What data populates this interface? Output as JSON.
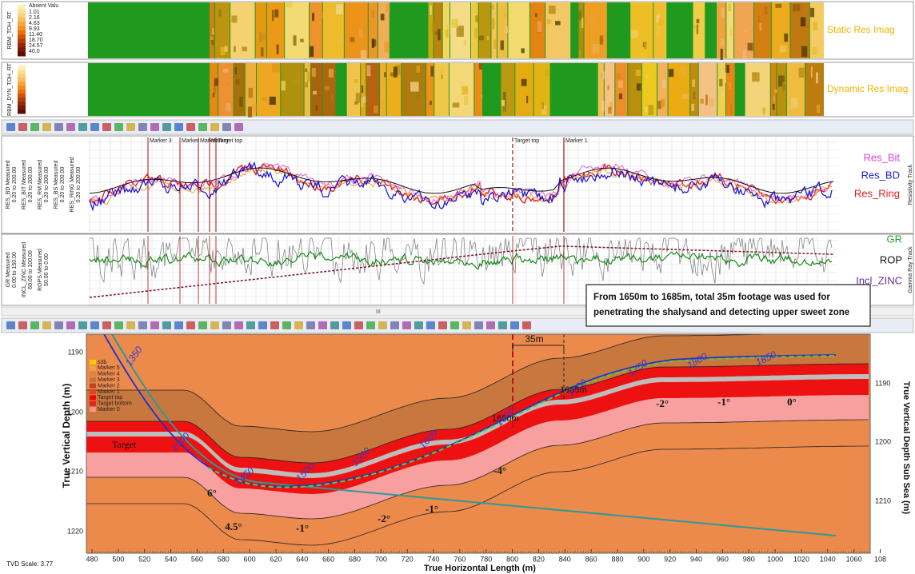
{
  "image_tracks": [
    {
      "label": "RBM_TOH_RT",
      "legend_title": "Absent Valu",
      "legend_values": [
        "1.01",
        "2.16",
        "4.63",
        "9.93",
        "11.40",
        "18.70",
        "24.57",
        "40.0"
      ],
      "name": "Static Res Imag"
    },
    {
      "label": "RBM_DYN_TOH_RT",
      "name": "Dynamic Res Imag"
    }
  ],
  "resistivity_track": {
    "curve_labels": [
      "RES_BD Measured",
      "0.20 to 200.00",
      "RES_BIT Measured",
      "0.20 to 200.00",
      "RES_RM Measured",
      "0.20 to 200.00",
      "RES_BS Measured",
      "0.20 to 200.00",
      "RES_RING Measured",
      "0.20 to 200.00"
    ],
    "markers": [
      "Marker 3",
      "Marker",
      "Marker",
      "Marker",
      "Target top",
      "Target top",
      "Marker 1"
    ],
    "legend": [
      "Res_Bit",
      "Res_BD",
      "Res_Ring"
    ],
    "track_name": "Resistivity Track"
  },
  "gamma_track": {
    "curve_labels": [
      "GR Measured",
      "0.00 to 150.00",
      "INCL_ZINC Measured",
      "60.00 to 100.00",
      "ROPS Measured",
      "50.00 to 0.00"
    ],
    "legend": [
      "GR",
      "ROP",
      "Incl_ZINC"
    ],
    "track_name": "Gamma Ray Track"
  },
  "scrollbar": "III",
  "annotation": [
    "From 1650m to 1685m, total 35m footage was used for",
    "penetrating the shalysand  and detecting upper sweet zone"
  ],
  "section": {
    "legend": [
      "s3b",
      "Marker 5",
      "Marker 4",
      "Marker 3",
      "Marker 2",
      "Marker 1",
      "Target top",
      "Target bottom",
      "Marker 0"
    ],
    "x_label": "True Horizontal Length (m)",
    "y_label": "True Vertical Depth (m)",
    "y2_label": "True Vertical Depth Sub Sea (m)",
    "xticks": [
      "480",
      "500",
      "520",
      "540",
      "560",
      "580",
      "600",
      "620",
      "640",
      "660",
      "680",
      "700",
      "720",
      "740",
      "760",
      "780",
      "800",
      "820",
      "840",
      "860",
      "880",
      "900",
      "920",
      "940",
      "960",
      "980",
      "1000",
      "1020",
      "1040",
      "1060",
      "108"
    ],
    "yticks": [
      "1190",
      "1200",
      "1210",
      "1220"
    ],
    "y2ticks": [
      "1190",
      "1200",
      "1210"
    ],
    "scale": "TVD Scale: 3.77",
    "interval": "35m",
    "start_label": "1650m",
    "end_label": "1685m",
    "zone_label": "Target",
    "dips": [
      "6°",
      "4.5°",
      "-1°",
      "-2°",
      "-1°",
      "-4°",
      "-2°",
      "-1°",
      "0°"
    ],
    "md_labels": [
      "1350",
      "1400",
      "1450",
      "1500",
      "1550",
      "1600",
      "1650",
      "1700",
      "1750",
      "1800",
      "1850"
    ]
  }
}
